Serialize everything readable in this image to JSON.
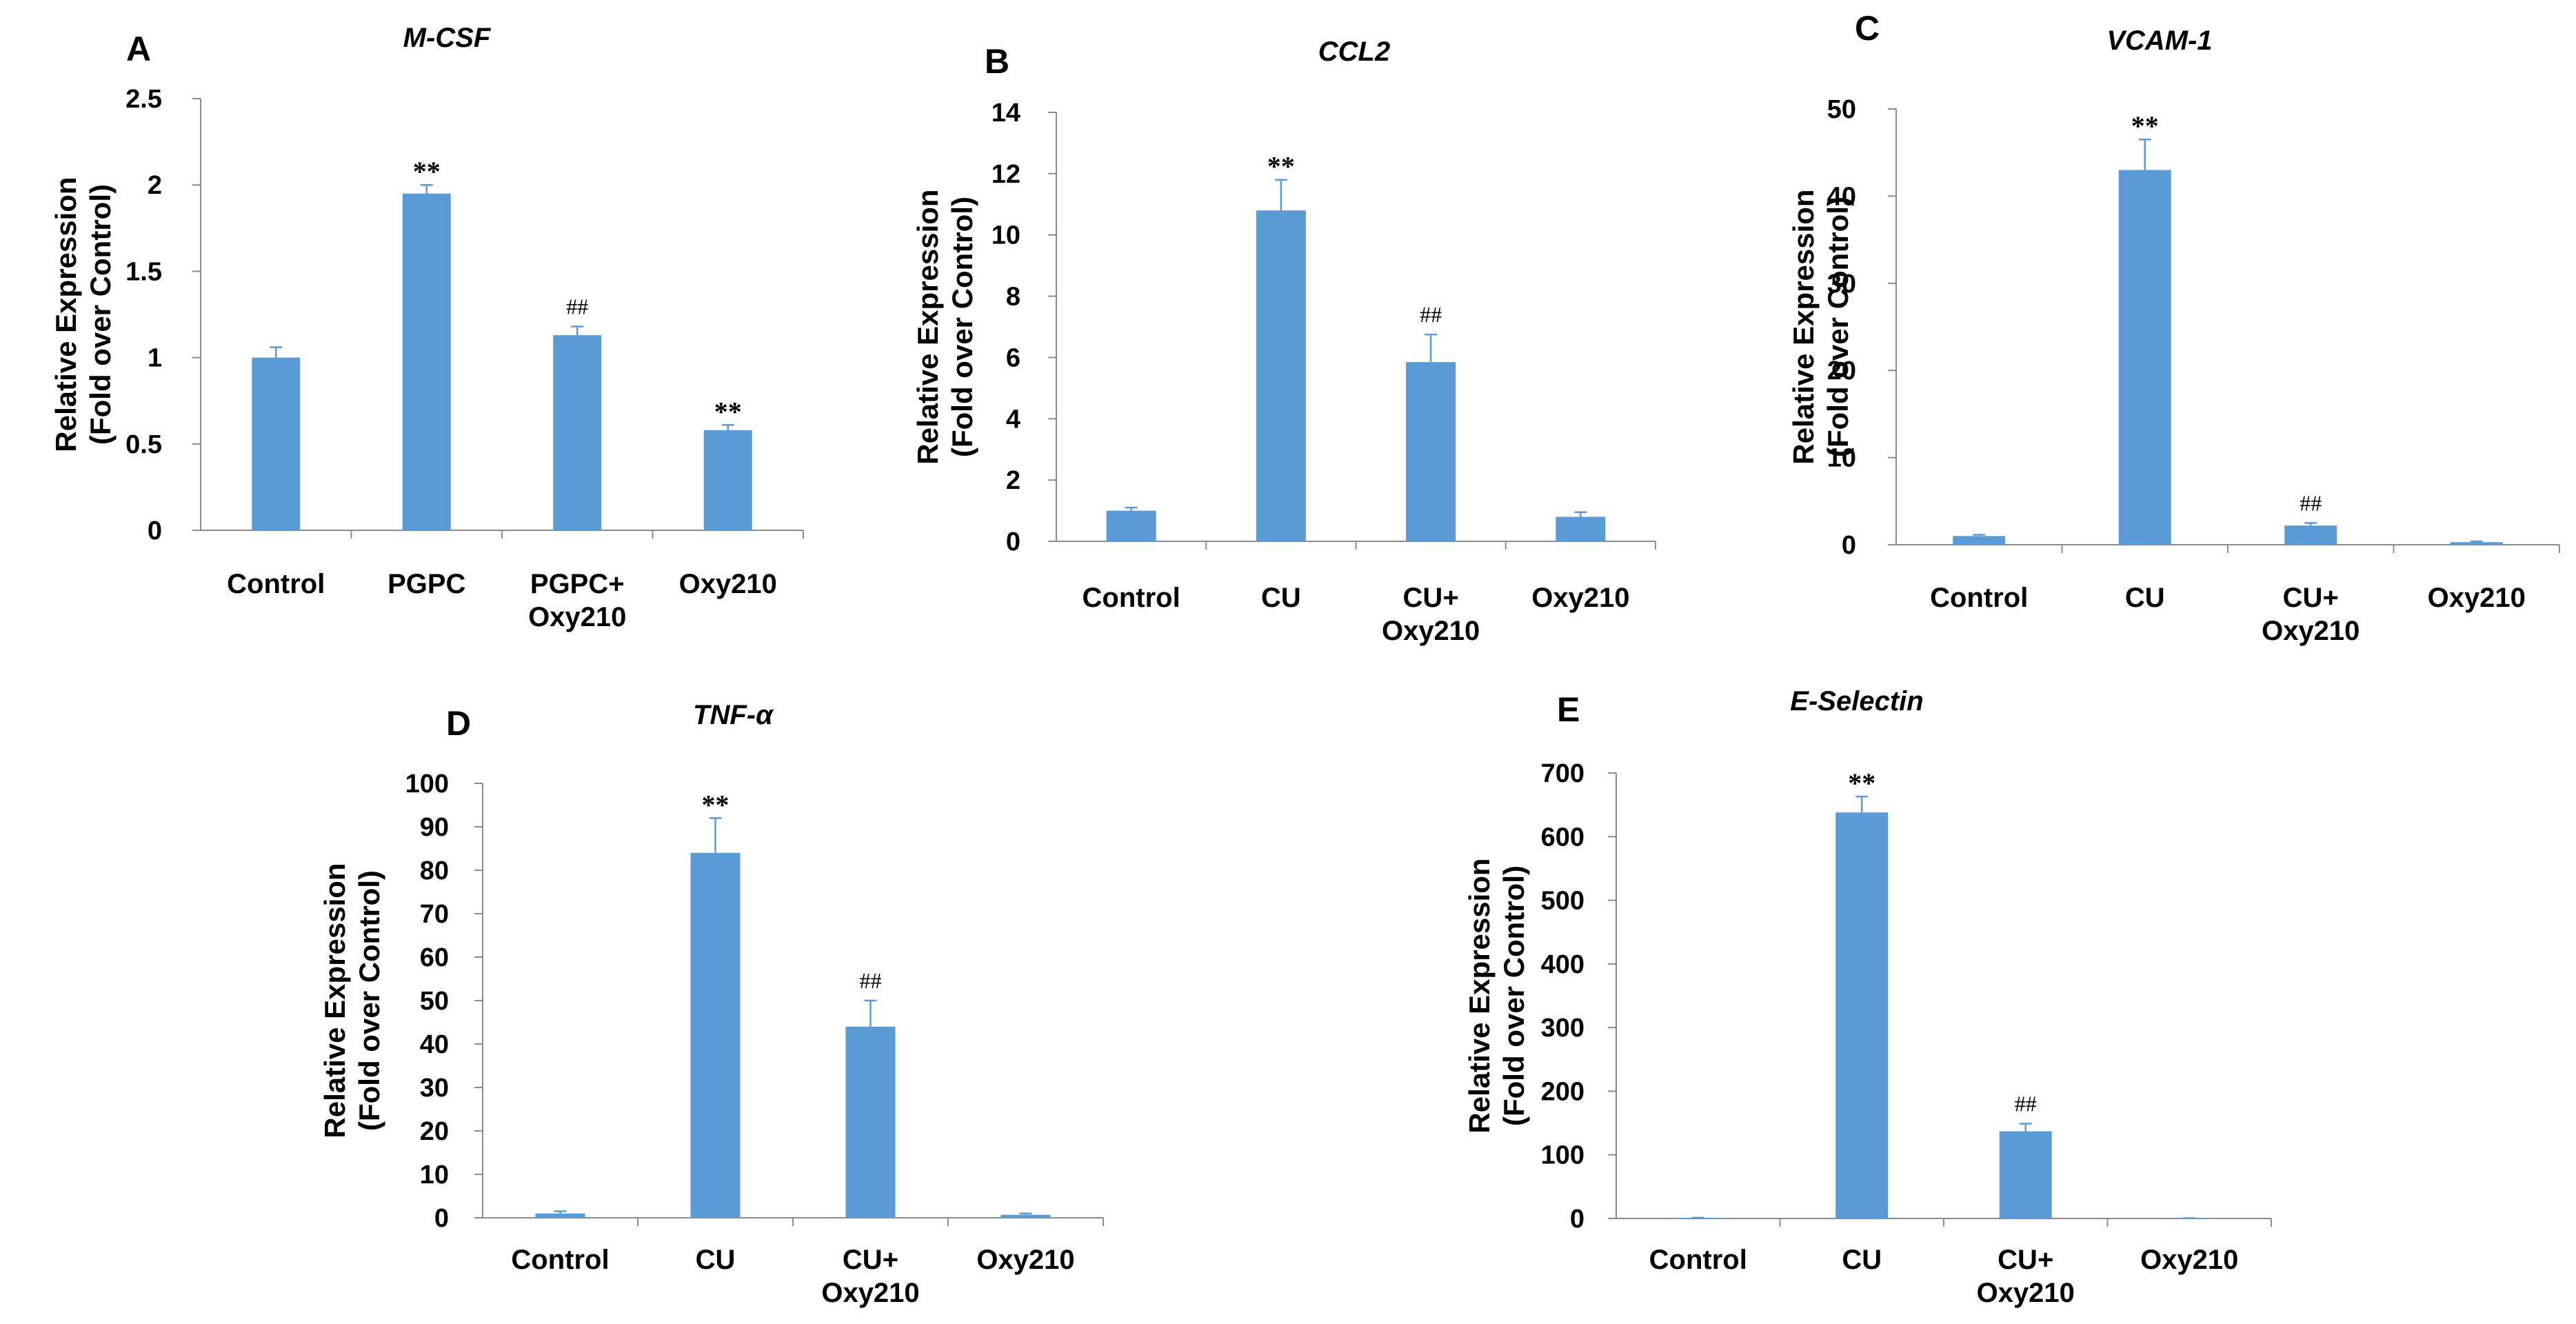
{
  "chart_data": [
    {
      "type": "bar",
      "panel": "A",
      "title": "M-CSF",
      "ylabel_lines": [
        "Relative Expression",
        "(Fold over Control)"
      ],
      "categories": [
        [
          "Control"
        ],
        [
          "PGPC"
        ],
        [
          "PGPC+",
          "Oxy210"
        ],
        [
          "Oxy210"
        ]
      ],
      "values": [
        1.0,
        1.95,
        1.13,
        0.58
      ],
      "errors": [
        0.06,
        0.05,
        0.05,
        0.03
      ],
      "significance": [
        "",
        "**",
        "##",
        "**"
      ],
      "ylim": [
        0,
        2.5
      ],
      "yticks": [
        0,
        0.5,
        1,
        1.5,
        2,
        2.5
      ],
      "ytick_labels": [
        "0",
        "0.5",
        "1",
        "1.5",
        "2",
        "2.5"
      ],
      "bar_color": "#5b9bd5"
    },
    {
      "type": "bar",
      "panel": "B",
      "title": "CCL2",
      "ylabel_lines": [
        "Relative Expression",
        "(Fold over Control)"
      ],
      "categories": [
        [
          "Control"
        ],
        [
          "CU"
        ],
        [
          "CU+",
          "Oxy210"
        ],
        [
          "Oxy210"
        ]
      ],
      "values": [
        1.0,
        10.8,
        5.85,
        0.8
      ],
      "errors": [
        0.1,
        1.0,
        0.9,
        0.15
      ],
      "significance": [
        "",
        "**",
        "##",
        ""
      ],
      "ylim": [
        0,
        14
      ],
      "yticks": [
        0,
        2,
        4,
        6,
        8,
        10,
        12,
        14
      ],
      "ytick_labels": [
        "0",
        "2",
        "4",
        "6",
        "8",
        "10",
        "12",
        "14"
      ],
      "bar_color": "#5b9bd5"
    },
    {
      "type": "bar",
      "panel": "C",
      "title": "VCAM-1",
      "ylabel_lines": [
        "Relative Expression",
        "(Fold over Control)"
      ],
      "categories": [
        [
          "Control"
        ],
        [
          "CU"
        ],
        [
          "CU+",
          "Oxy210"
        ],
        [
          "Oxy210"
        ]
      ],
      "values": [
        1.0,
        43.0,
        2.2,
        0.3
      ],
      "errors": [
        0.15,
        3.5,
        0.3,
        0.1
      ],
      "significance": [
        "",
        "**",
        "##",
        ""
      ],
      "ylim": [
        0,
        50
      ],
      "yticks": [
        0,
        10,
        20,
        30,
        40,
        50
      ],
      "ytick_labels": [
        "0",
        "10",
        "20",
        "30",
        "40",
        "50"
      ],
      "bar_color": "#5b9bd5"
    },
    {
      "type": "bar",
      "panel": "D",
      "title": "TNF-α",
      "ylabel_lines": [
        "Relative Expression",
        "(Fold over Control)"
      ],
      "categories": [
        [
          "Control"
        ],
        [
          "CU"
        ],
        [
          "CU+",
          "Oxy210"
        ],
        [
          "Oxy210"
        ]
      ],
      "values": [
        1.0,
        84.0,
        44.0,
        0.7
      ],
      "errors": [
        0.5,
        8.0,
        6.0,
        0.3
      ],
      "significance": [
        "",
        "**",
        "##",
        ""
      ],
      "ylim": [
        0,
        100
      ],
      "yticks": [
        0,
        10,
        20,
        30,
        40,
        50,
        60,
        70,
        80,
        90,
        100
      ],
      "ytick_labels": [
        "0",
        "10",
        "20",
        "30",
        "40",
        "50",
        "60",
        "70",
        "80",
        "90",
        "100"
      ],
      "bar_color": "#5b9bd5"
    },
    {
      "type": "bar",
      "panel": "E",
      "title": "E-Selectin",
      "ylabel_lines": [
        "Relative Expression",
        "(Fold over Control)"
      ],
      "categories": [
        [
          "Control"
        ],
        [
          "CU"
        ],
        [
          "CU+",
          "Oxy210"
        ],
        [
          "Oxy210"
        ]
      ],
      "values": [
        1.0,
        638.0,
        137.0,
        0.5
      ],
      "errors": [
        0.2,
        25.0,
        12.0,
        0.1
      ],
      "significance": [
        "",
        "**",
        "##",
        ""
      ],
      "ylim": [
        0,
        700
      ],
      "yticks": [
        0,
        100,
        200,
        300,
        400,
        500,
        600,
        700
      ],
      "ytick_labels": [
        "0",
        "100",
        "200",
        "300",
        "400",
        "500",
        "600",
        "700"
      ],
      "bar_color": "#5b9bd5"
    }
  ]
}
